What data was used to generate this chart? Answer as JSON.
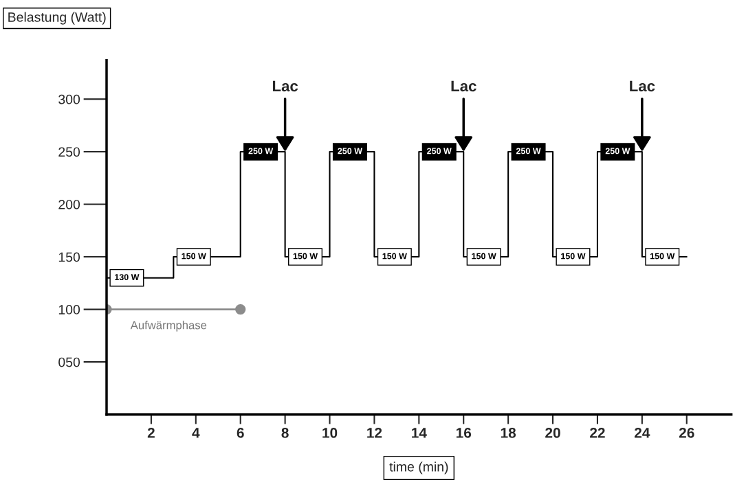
{
  "chart_data": {
    "type": "step",
    "xlabel": "time (min)",
    "ylabel": "Belastung (Watt)",
    "x": [
      0,
      3,
      6,
      8,
      10,
      12,
      14,
      16,
      18,
      20,
      22,
      24,
      26
    ],
    "series": [
      {
        "color": "#000000",
        "values": [
          130,
          150,
          250,
          150,
          250,
          150,
          250,
          150,
          250,
          150,
          250,
          150,
          150
        ],
        "value_labels": [
          "130 W",
          "150 W",
          "250 W",
          "150 W",
          "250 W",
          "150 W",
          "250 W",
          "150 W",
          "250 W",
          "150 W",
          "250 W",
          "150 W",
          null
        ],
        "colors": [
          "#ffffff",
          "#ffffff",
          "#000000",
          "#ffffff",
          "#000000",
          "#ffffff",
          "#000000",
          "#ffffff",
          "#000000",
          "#ffffff",
          "#000000",
          "#ffffff",
          "#ffffff"
        ]
      },
      {
        "type": "line",
        "color": "#8c8c8c",
        "x": [
          0,
          6
        ],
        "values": [
          100,
          100
        ],
        "marker": "circle"
      }
    ],
    "annotations": [
      {
        "text": "Lac",
        "x": 8,
        "y": 250
      },
      {
        "text": "Lac",
        "x": 16,
        "y": 250
      },
      {
        "text": "Lac",
        "x": 24,
        "y": 250
      },
      {
        "text": "Aufwärmphase",
        "x": 0,
        "y": 100
      }
    ],
    "xlim": [
      0,
      28
    ],
    "ylim": [
      0,
      337
    ],
    "xticks": [
      2,
      4,
      6,
      8,
      10,
      12,
      14,
      16,
      18,
      20,
      22,
      24,
      26
    ],
    "yticks": [
      {
        "value": 50,
        "label": "050"
      },
      100,
      150,
      200,
      250,
      300
    ],
    "grid": false
  }
}
